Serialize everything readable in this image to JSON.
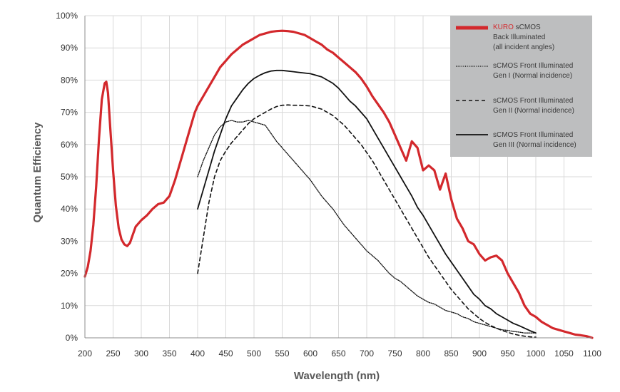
{
  "colors": {
    "kuro": "#d3282c",
    "black": "#111111",
    "grid": "#d9d9d9",
    "legend_bg": "#bdbebf",
    "axis_text": "#333333",
    "title_text": "#595959"
  },
  "chart_data": {
    "type": "line",
    "title": "",
    "xlabel": "Wavelength (nm)",
    "ylabel": "Quantum Efficiency",
    "xlim": [
      200,
      1100
    ],
    "ylim": [
      0,
      100
    ],
    "grid": true,
    "legend_position": "top-right",
    "x_ticks": [
      200,
      250,
      300,
      350,
      400,
      450,
      500,
      550,
      600,
      650,
      700,
      750,
      800,
      850,
      900,
      950,
      1000,
      1050,
      1100
    ],
    "x_tick_labels": [
      "200",
      "250",
      "300",
      "350",
      "400",
      "450",
      "500",
      "550",
      "600",
      "650",
      "700",
      "750",
      "800",
      "850",
      "900",
      "950",
      "1000",
      "1050",
      "1100"
    ],
    "y_ticks": [
      0,
      10,
      20,
      30,
      40,
      50,
      60,
      70,
      80,
      90,
      100
    ],
    "y_tick_labels": [
      "0%",
      "10%",
      "20%",
      "30%",
      "40%",
      "50%",
      "60%",
      "70%",
      "80%",
      "90%",
      "100%"
    ],
    "series": [
      {
        "key": "kuro",
        "style": "thick-red",
        "legend": {
          "accent": "KURO",
          "line1_rest": " sCMOS",
          "line2": "Back Illuminated",
          "line3": "(all incident angles)"
        },
        "points": [
          [
            200,
            19
          ],
          [
            205,
            22
          ],
          [
            210,
            27
          ],
          [
            215,
            35
          ],
          [
            220,
            47
          ],
          [
            225,
            62
          ],
          [
            230,
            74
          ],
          [
            235,
            79
          ],
          [
            238,
            79.5
          ],
          [
            241,
            76
          ],
          [
            245,
            65
          ],
          [
            250,
            52
          ],
          [
            255,
            41
          ],
          [
            260,
            34
          ],
          [
            265,
            30.5
          ],
          [
            270,
            29
          ],
          [
            275,
            28.5
          ],
          [
            280,
            29.5
          ],
          [
            285,
            32
          ],
          [
            290,
            34.5
          ],
          [
            300,
            36.5
          ],
          [
            310,
            38
          ],
          [
            320,
            40
          ],
          [
            330,
            41.5
          ],
          [
            340,
            42
          ],
          [
            350,
            44
          ],
          [
            360,
            49
          ],
          [
            370,
            55
          ],
          [
            380,
            61
          ],
          [
            390,
            67
          ],
          [
            395,
            70
          ],
          [
            400,
            72
          ],
          [
            410,
            75
          ],
          [
            420,
            78
          ],
          [
            430,
            81
          ],
          [
            440,
            84
          ],
          [
            450,
            86
          ],
          [
            460,
            88
          ],
          [
            470,
            89.5
          ],
          [
            480,
            91
          ],
          [
            490,
            92
          ],
          [
            500,
            93
          ],
          [
            510,
            94
          ],
          [
            520,
            94.5
          ],
          [
            530,
            95
          ],
          [
            540,
            95.2
          ],
          [
            550,
            95.3
          ],
          [
            560,
            95.2
          ],
          [
            570,
            95
          ],
          [
            580,
            94.5
          ],
          [
            590,
            94
          ],
          [
            600,
            93
          ],
          [
            610,
            92
          ],
          [
            620,
            91
          ],
          [
            630,
            89.5
          ],
          [
            640,
            88.5
          ],
          [
            650,
            87
          ],
          [
            660,
            85.5
          ],
          [
            670,
            84
          ],
          [
            680,
            82.5
          ],
          [
            690,
            80.5
          ],
          [
            700,
            78
          ],
          [
            710,
            75
          ],
          [
            720,
            72.5
          ],
          [
            730,
            70
          ],
          [
            740,
            67
          ],
          [
            750,
            63
          ],
          [
            760,
            59
          ],
          [
            770,
            55
          ],
          [
            780,
            61
          ],
          [
            790,
            59
          ],
          [
            800,
            52
          ],
          [
            810,
            53.5
          ],
          [
            820,
            52
          ],
          [
            830,
            46
          ],
          [
            840,
            51
          ],
          [
            850,
            43
          ],
          [
            860,
            37
          ],
          [
            870,
            34
          ],
          [
            880,
            30
          ],
          [
            890,
            29
          ],
          [
            900,
            26
          ],
          [
            910,
            24
          ],
          [
            920,
            25
          ],
          [
            930,
            25.5
          ],
          [
            940,
            24
          ],
          [
            950,
            20
          ],
          [
            960,
            17
          ],
          [
            970,
            14
          ],
          [
            980,
            10
          ],
          [
            990,
            7.5
          ],
          [
            1000,
            6.5
          ],
          [
            1010,
            5
          ],
          [
            1020,
            4
          ],
          [
            1030,
            3
          ],
          [
            1040,
            2.5
          ],
          [
            1050,
            2
          ],
          [
            1060,
            1.5
          ],
          [
            1070,
            1
          ],
          [
            1080,
            0.8
          ],
          [
            1090,
            0.5
          ],
          [
            1100,
            0
          ]
        ]
      },
      {
        "key": "gen1",
        "style": "dotted",
        "legend": {
          "line1": "sCMOS Front Illuminated",
          "line2": "Gen I (Normal incidence)"
        },
        "points": [
          [
            400,
            50
          ],
          [
            410,
            55
          ],
          [
            420,
            59
          ],
          [
            430,
            63
          ],
          [
            440,
            65.5
          ],
          [
            450,
            67
          ],
          [
            460,
            67.5
          ],
          [
            470,
            67
          ],
          [
            480,
            67
          ],
          [
            490,
            67.5
          ],
          [
            500,
            67
          ],
          [
            510,
            66.5
          ],
          [
            520,
            66
          ],
          [
            530,
            63.5
          ],
          [
            540,
            61
          ],
          [
            550,
            59
          ],
          [
            560,
            57
          ],
          [
            570,
            55
          ],
          [
            580,
            53
          ],
          [
            590,
            51
          ],
          [
            600,
            49
          ],
          [
            610,
            46.5
          ],
          [
            620,
            44
          ],
          [
            630,
            42
          ],
          [
            640,
            40
          ],
          [
            650,
            37.5
          ],
          [
            660,
            35
          ],
          [
            670,
            33
          ],
          [
            680,
            31
          ],
          [
            690,
            29
          ],
          [
            700,
            27
          ],
          [
            710,
            25.5
          ],
          [
            720,
            24
          ],
          [
            730,
            22
          ],
          [
            740,
            20
          ],
          [
            750,
            18.5
          ],
          [
            760,
            17.5
          ],
          [
            770,
            16
          ],
          [
            780,
            14.5
          ],
          [
            790,
            13
          ],
          [
            800,
            12
          ],
          [
            810,
            11
          ],
          [
            820,
            10.5
          ],
          [
            830,
            9.5
          ],
          [
            840,
            8.5
          ],
          [
            850,
            8
          ],
          [
            860,
            7.5
          ],
          [
            870,
            6.5
          ],
          [
            880,
            6
          ],
          [
            890,
            5
          ],
          [
            900,
            4.5
          ],
          [
            910,
            4
          ],
          [
            920,
            3.5
          ],
          [
            930,
            3
          ],
          [
            940,
            2.5
          ],
          [
            950,
            2.3
          ],
          [
            960,
            2
          ],
          [
            970,
            1.8
          ],
          [
            980,
            1.5
          ],
          [
            990,
            1.5
          ],
          [
            1000,
            1.5
          ]
        ]
      },
      {
        "key": "gen2",
        "style": "dashed",
        "legend": {
          "line1": "sCMOS Front Illuminated",
          "line2": "Gen II (Normal incidence)"
        },
        "points": [
          [
            400,
            20
          ],
          [
            410,
            31
          ],
          [
            420,
            42
          ],
          [
            430,
            50
          ],
          [
            440,
            55
          ],
          [
            450,
            58
          ],
          [
            460,
            60.5
          ],
          [
            470,
            62.5
          ],
          [
            480,
            64.5
          ],
          [
            490,
            66.5
          ],
          [
            500,
            68
          ],
          [
            510,
            69
          ],
          [
            520,
            70
          ],
          [
            530,
            71
          ],
          [
            540,
            71.8
          ],
          [
            550,
            72.2
          ],
          [
            560,
            72.3
          ],
          [
            570,
            72.2
          ],
          [
            580,
            72.2
          ],
          [
            590,
            72.1
          ],
          [
            600,
            72
          ],
          [
            610,
            71.5
          ],
          [
            620,
            71
          ],
          [
            630,
            70
          ],
          [
            640,
            69
          ],
          [
            650,
            67.5
          ],
          [
            660,
            66
          ],
          [
            670,
            64
          ],
          [
            680,
            62
          ],
          [
            690,
            60
          ],
          [
            700,
            57.5
          ],
          [
            710,
            55
          ],
          [
            720,
            52
          ],
          [
            730,
            49
          ],
          [
            740,
            46
          ],
          [
            750,
            43
          ],
          [
            760,
            40
          ],
          [
            770,
            37
          ],
          [
            780,
            34
          ],
          [
            790,
            31
          ],
          [
            800,
            28
          ],
          [
            810,
            25
          ],
          [
            820,
            22.5
          ],
          [
            830,
            20
          ],
          [
            840,
            17.5
          ],
          [
            850,
            15
          ],
          [
            860,
            13
          ],
          [
            870,
            11
          ],
          [
            880,
            9
          ],
          [
            890,
            7.5
          ],
          [
            900,
            6
          ],
          [
            910,
            4.8
          ],
          [
            920,
            3.8
          ],
          [
            930,
            3
          ],
          [
            940,
            2.3
          ],
          [
            950,
            1.7
          ],
          [
            960,
            1.2
          ],
          [
            970,
            0.8
          ],
          [
            980,
            0.5
          ],
          [
            990,
            0.3
          ],
          [
            1000,
            0.2
          ]
        ]
      },
      {
        "key": "gen3",
        "style": "solid-black",
        "legend": {
          "line1": "sCMOS Front Illuminated",
          "line2": "Gen III (Normal incidence)"
        },
        "points": [
          [
            400,
            40
          ],
          [
            410,
            46
          ],
          [
            420,
            52
          ],
          [
            430,
            58
          ],
          [
            440,
            63
          ],
          [
            450,
            68
          ],
          [
            460,
            72
          ],
          [
            470,
            74.5
          ],
          [
            480,
            77
          ],
          [
            490,
            79
          ],
          [
            500,
            80.5
          ],
          [
            510,
            81.5
          ],
          [
            520,
            82.3
          ],
          [
            530,
            82.8
          ],
          [
            540,
            83
          ],
          [
            550,
            83
          ],
          [
            560,
            82.8
          ],
          [
            570,
            82.6
          ],
          [
            580,
            82.4
          ],
          [
            590,
            82.2
          ],
          [
            600,
            82
          ],
          [
            610,
            81.5
          ],
          [
            620,
            81
          ],
          [
            630,
            80
          ],
          [
            640,
            79
          ],
          [
            650,
            77.5
          ],
          [
            660,
            75.5
          ],
          [
            670,
            73.5
          ],
          [
            680,
            72
          ],
          [
            690,
            70
          ],
          [
            700,
            68
          ],
          [
            710,
            65
          ],
          [
            720,
            62
          ],
          [
            730,
            59
          ],
          [
            740,
            56
          ],
          [
            750,
            53
          ],
          [
            760,
            50
          ],
          [
            770,
            47
          ],
          [
            780,
            44
          ],
          [
            790,
            40.5
          ],
          [
            800,
            38
          ],
          [
            810,
            35
          ],
          [
            820,
            32
          ],
          [
            830,
            29
          ],
          [
            840,
            26
          ],
          [
            850,
            23.5
          ],
          [
            860,
            21
          ],
          [
            870,
            18.5
          ],
          [
            880,
            16
          ],
          [
            890,
            13.5
          ],
          [
            900,
            12
          ],
          [
            910,
            10
          ],
          [
            920,
            9
          ],
          [
            930,
            7.5
          ],
          [
            940,
            6.5
          ],
          [
            950,
            5.5
          ],
          [
            960,
            4.5
          ],
          [
            970,
            3.8
          ],
          [
            980,
            3
          ],
          [
            990,
            2.2
          ],
          [
            1000,
            1.5
          ]
        ]
      }
    ]
  }
}
